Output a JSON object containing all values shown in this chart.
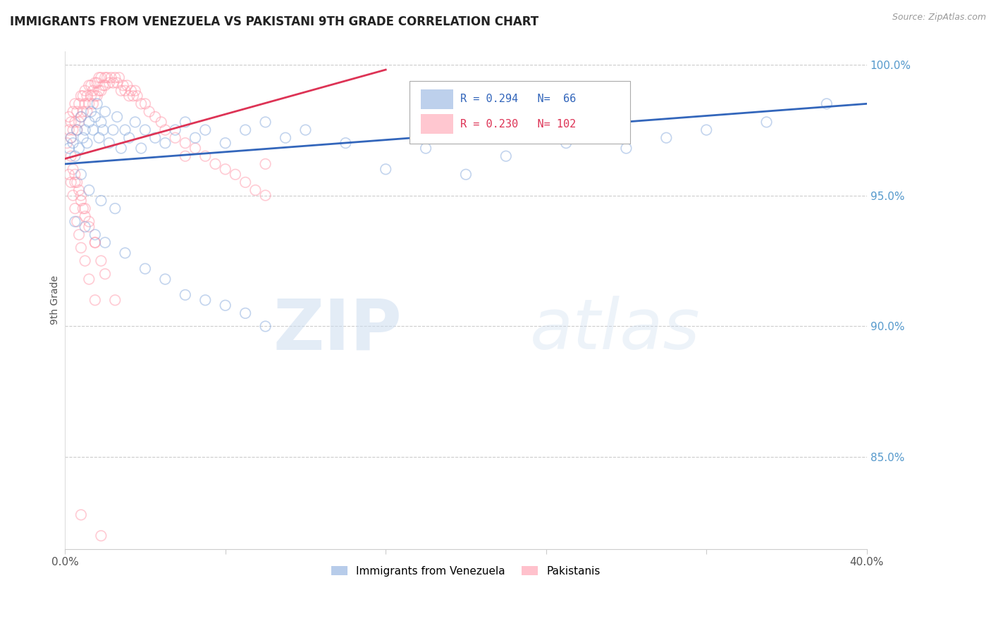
{
  "title": "IMMIGRANTS FROM VENEZUELA VS PAKISTANI 9TH GRADE CORRELATION CHART",
  "source": "Source: ZipAtlas.com",
  "ylabel": "9th Grade",
  "xlim": [
    0.0,
    0.4
  ],
  "ylim": [
    0.815,
    1.005
  ],
  "yticks": [
    0.85,
    0.9,
    0.95,
    1.0
  ],
  "ytick_labels": [
    "85.0%",
    "90.0%",
    "95.0%",
    "100.0%"
  ],
  "xticks": [
    0.0,
    0.08,
    0.16,
    0.24,
    0.32,
    0.4
  ],
  "xtick_labels": [
    "0.0%",
    "",
    "",
    "",
    "",
    "40.0%"
  ],
  "watermark_zip": "ZIP",
  "watermark_atlas": "atlas",
  "blue_color": "#88AADD",
  "pink_color": "#FF99AA",
  "blue_line_color": "#3366BB",
  "pink_line_color": "#DD3355",
  "blue_scatter_x": [
    0.002,
    0.003,
    0.004,
    0.005,
    0.006,
    0.007,
    0.008,
    0.009,
    0.01,
    0.011,
    0.012,
    0.013,
    0.014,
    0.015,
    0.016,
    0.017,
    0.018,
    0.019,
    0.02,
    0.022,
    0.024,
    0.026,
    0.028,
    0.03,
    0.032,
    0.035,
    0.038,
    0.04,
    0.045,
    0.05,
    0.055,
    0.06,
    0.065,
    0.07,
    0.08,
    0.09,
    0.1,
    0.11,
    0.12,
    0.14,
    0.16,
    0.18,
    0.2,
    0.22,
    0.25,
    0.28,
    0.3,
    0.32,
    0.35,
    0.38,
    0.008,
    0.012,
    0.018,
    0.025,
    0.005,
    0.01,
    0.015,
    0.02,
    0.03,
    0.04,
    0.05,
    0.06,
    0.07,
    0.08,
    0.09,
    0.1
  ],
  "blue_scatter_y": [
    0.968,
    0.972,
    0.97,
    0.965,
    0.975,
    0.968,
    0.98,
    0.972,
    0.975,
    0.97,
    0.978,
    0.982,
    0.975,
    0.98,
    0.985,
    0.972,
    0.978,
    0.975,
    0.982,
    0.97,
    0.975,
    0.98,
    0.968,
    0.975,
    0.972,
    0.978,
    0.968,
    0.975,
    0.972,
    0.97,
    0.975,
    0.978,
    0.972,
    0.975,
    0.97,
    0.975,
    0.978,
    0.972,
    0.975,
    0.97,
    0.96,
    0.968,
    0.958,
    0.965,
    0.97,
    0.968,
    0.972,
    0.975,
    0.978,
    0.985,
    0.958,
    0.952,
    0.948,
    0.945,
    0.94,
    0.938,
    0.935,
    0.932,
    0.928,
    0.922,
    0.918,
    0.912,
    0.91,
    0.908,
    0.905,
    0.9
  ],
  "pink_scatter_x": [
    0.001,
    0.002,
    0.002,
    0.003,
    0.003,
    0.004,
    0.004,
    0.005,
    0.005,
    0.006,
    0.006,
    0.007,
    0.007,
    0.008,
    0.008,
    0.009,
    0.009,
    0.01,
    0.01,
    0.011,
    0.011,
    0.012,
    0.012,
    0.013,
    0.013,
    0.014,
    0.014,
    0.015,
    0.015,
    0.016,
    0.016,
    0.017,
    0.017,
    0.018,
    0.018,
    0.019,
    0.02,
    0.02,
    0.021,
    0.022,
    0.023,
    0.024,
    0.025,
    0.026,
    0.027,
    0.028,
    0.029,
    0.03,
    0.031,
    0.032,
    0.033,
    0.034,
    0.035,
    0.036,
    0.038,
    0.04,
    0.042,
    0.045,
    0.048,
    0.05,
    0.055,
    0.06,
    0.065,
    0.07,
    0.075,
    0.08,
    0.085,
    0.09,
    0.095,
    0.1,
    0.003,
    0.004,
    0.005,
    0.006,
    0.007,
    0.008,
    0.009,
    0.01,
    0.012,
    0.015,
    0.002,
    0.003,
    0.004,
    0.005,
    0.006,
    0.007,
    0.008,
    0.01,
    0.012,
    0.015,
    0.005,
    0.008,
    0.01,
    0.012,
    0.015,
    0.018,
    0.02,
    0.025,
    0.06,
    0.1,
    0.008,
    0.018
  ],
  "pink_scatter_y": [
    0.97,
    0.975,
    0.98,
    0.972,
    0.978,
    0.975,
    0.982,
    0.978,
    0.985,
    0.975,
    0.982,
    0.978,
    0.985,
    0.98,
    0.988,
    0.982,
    0.988,
    0.985,
    0.99,
    0.982,
    0.988,
    0.985,
    0.992,
    0.988,
    0.992,
    0.985,
    0.99,
    0.988,
    0.993,
    0.988,
    0.993,
    0.99,
    0.995,
    0.99,
    0.995,
    0.992,
    0.995,
    0.992,
    0.995,
    0.993,
    0.995,
    0.993,
    0.995,
    0.993,
    0.995,
    0.99,
    0.992,
    0.99,
    0.992,
    0.988,
    0.99,
    0.988,
    0.99,
    0.988,
    0.985,
    0.985,
    0.982,
    0.98,
    0.978,
    0.975,
    0.972,
    0.97,
    0.968,
    0.965,
    0.962,
    0.96,
    0.958,
    0.955,
    0.952,
    0.95,
    0.965,
    0.96,
    0.958,
    0.955,
    0.952,
    0.948,
    0.945,
    0.942,
    0.938,
    0.932,
    0.958,
    0.955,
    0.95,
    0.945,
    0.94,
    0.935,
    0.93,
    0.925,
    0.918,
    0.91,
    0.955,
    0.95,
    0.945,
    0.94,
    0.932,
    0.925,
    0.92,
    0.91,
    0.965,
    0.962,
    0.828,
    0.82
  ]
}
